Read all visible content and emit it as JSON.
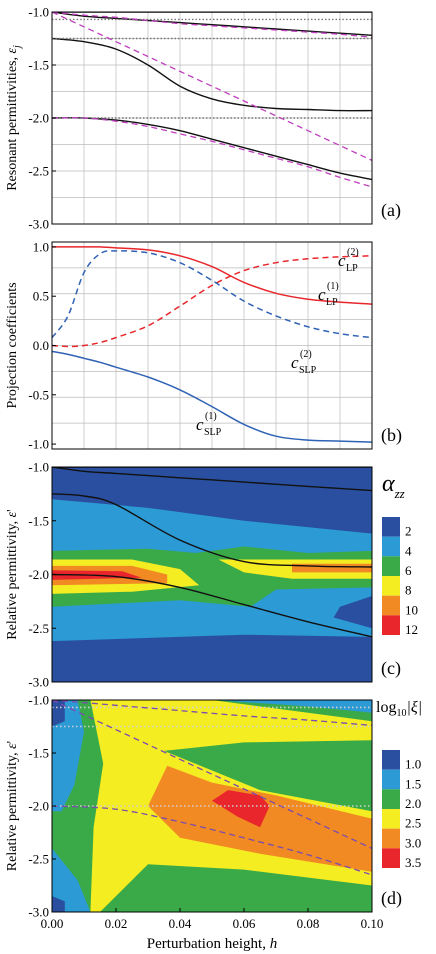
{
  "chart_data": [
    {
      "panel": "(a)",
      "type": "line",
      "ylabel": "Resonant permittivities, ε_j",
      "xlim": [
        0,
        0.1
      ],
      "ylim": [
        -3.0,
        -1.0
      ],
      "yticks": [
        "-1.0",
        "-1.5",
        "-2.0",
        "-2.5",
        "-3.0"
      ],
      "grid": true,
      "x": [
        0,
        0.01,
        0.02,
        0.03,
        0.04,
        0.05,
        0.06,
        0.07,
        0.08,
        0.09,
        0.1
      ],
      "series": [
        {
          "style": "solid-black",
          "values": [
            -1.0,
            -1.0,
            -1.0,
            -1.0,
            -1.0,
            -1.0,
            -1.0,
            -1.0,
            -1.0,
            -1.0,
            -1.0
          ]
        },
        {
          "style": "solid-black",
          "values": [
            -1.0,
            -1.04,
            -1.06,
            -1.08,
            -1.1,
            -1.12,
            -1.14,
            -1.16,
            -1.18,
            -1.2,
            -1.22
          ]
        },
        {
          "style": "solid-black",
          "values": [
            -1.25,
            -1.28,
            -1.35,
            -1.5,
            -1.7,
            -1.82,
            -1.88,
            -1.91,
            -1.92,
            -1.93,
            -1.93
          ]
        },
        {
          "style": "solid-black",
          "values": [
            -2.0,
            -2.0,
            -2.02,
            -2.06,
            -2.12,
            -2.2,
            -2.28,
            -2.36,
            -2.44,
            -2.52,
            -2.58
          ]
        },
        {
          "style": "dotted-grey",
          "values": [
            -1.07,
            -1.07,
            -1.07,
            -1.07,
            -1.07,
            -1.07,
            -1.07,
            -1.07,
            -1.07,
            -1.07,
            -1.07
          ]
        },
        {
          "style": "dotted-grey",
          "values": [
            -1.25,
            -1.25,
            -1.25,
            -1.25,
            -1.25,
            -1.25,
            -1.25,
            -1.25,
            -1.25,
            -1.25,
            -1.25
          ]
        },
        {
          "style": "dotted-grey",
          "values": [
            -2.0,
            -2.0,
            -2.0,
            -2.0,
            -2.0,
            -2.0,
            -2.0,
            -2.0,
            -2.0,
            -2.0,
            -2.0
          ]
        },
        {
          "style": "dashed-magenta",
          "values": [
            -1.0,
            -1.03,
            -1.05,
            -1.08,
            -1.11,
            -1.13,
            -1.15,
            -1.17,
            -1.19,
            -1.21,
            -1.24
          ]
        },
        {
          "style": "dashed-magenta",
          "values": [
            -1.0,
            -1.14,
            -1.28,
            -1.42,
            -1.56,
            -1.7,
            -1.84,
            -1.98,
            -2.12,
            -2.26,
            -2.4
          ]
        },
        {
          "style": "dashed-magenta",
          "values": [
            -2.0,
            -2.0,
            -2.03,
            -2.08,
            -2.15,
            -2.22,
            -2.3,
            -2.38,
            -2.46,
            -2.56,
            -2.65
          ]
        }
      ]
    },
    {
      "panel": "(b)",
      "type": "line",
      "ylabel": "Projection coefficients",
      "xlim": [
        0,
        0.1
      ],
      "ylim": [
        -1.05,
        1.05
      ],
      "yticks": [
        "1.0",
        "0.5",
        "0.0",
        "-0.5",
        "-1.0"
      ],
      "grid": true,
      "x": [
        0,
        0.005,
        0.01,
        0.015,
        0.02,
        0.03,
        0.04,
        0.05,
        0.06,
        0.07,
        0.08,
        0.09,
        0.1
      ],
      "series": [
        {
          "label_main": "c",
          "label_sup": "(1)",
          "label_sub": "LP",
          "color": "#e8262b",
          "dash": false,
          "values": [
            1.0,
            1.0,
            1.0,
            1.0,
            0.99,
            0.97,
            0.91,
            0.8,
            0.64,
            0.53,
            0.47,
            0.44,
            0.42
          ]
        },
        {
          "label_main": "c",
          "label_sup": "(2)",
          "label_sub": "LP",
          "color": "#e8262b",
          "dash": true,
          "values": [
            0.0,
            -0.01,
            0.0,
            0.03,
            0.08,
            0.2,
            0.4,
            0.61,
            0.76,
            0.84,
            0.88,
            0.9,
            0.91
          ]
        },
        {
          "label_main": "c",
          "label_sup": "(2)",
          "label_sub": "SLP",
          "color": "#2f62b4",
          "dash": true,
          "values": [
            0.08,
            0.3,
            0.74,
            0.93,
            0.96,
            0.94,
            0.84,
            0.66,
            0.45,
            0.3,
            0.19,
            0.12,
            0.08
          ]
        },
        {
          "label_main": "c",
          "label_sup": "(1)",
          "label_sub": "SLP",
          "color": "#2f62b4",
          "dash": false,
          "values": [
            -0.06,
            -0.09,
            -0.13,
            -0.17,
            -0.22,
            -0.32,
            -0.45,
            -0.62,
            -0.8,
            -0.92,
            -0.96,
            -0.97,
            -0.98
          ]
        }
      ]
    },
    {
      "panel": "(c)",
      "type": "heatmap",
      "ylabel": "Relative permittivity, ε'",
      "xlim": [
        0,
        0.1
      ],
      "ylim": [
        -3.0,
        -1.0
      ],
      "yticks": [
        "-1.0",
        "-1.5",
        "-2.0",
        "-2.5",
        "-3.0"
      ],
      "colorbar_title_main": "α",
      "colorbar_title_sub": "zz",
      "colorbar_levels": [
        "2",
        "4",
        "6",
        "8",
        "10",
        "12"
      ],
      "colorbar_colors": [
        "#2a4fa0",
        "#2c9ad4",
        "#3aaa48",
        "#f4ed22",
        "#f18a22",
        "#e8262b"
      ],
      "overlay_lines": [
        {
          "x": [
            0,
            0.01,
            0.02,
            0.04,
            0.06,
            0.08,
            0.1
          ],
          "y": [
            -1.0,
            -1.04,
            -1.06,
            -1.1,
            -1.14,
            -1.18,
            -1.22
          ]
        },
        {
          "x": [
            0,
            0.01,
            0.02,
            0.04,
            0.06,
            0.08,
            0.1
          ],
          "y": [
            -1.25,
            -1.27,
            -1.35,
            -1.68,
            -1.88,
            -1.92,
            -1.93
          ]
        },
        {
          "x": [
            0,
            0.02,
            0.04,
            0.06,
            0.08,
            0.1
          ],
          "y": [
            -2.0,
            -2.02,
            -2.12,
            -2.28,
            -2.44,
            -2.58
          ]
        },
        {
          "x": [
            0,
            0.1
          ],
          "y": [
            -1.0,
            -1.0
          ]
        }
      ]
    },
    {
      "panel": "(d)",
      "type": "heatmap",
      "ylabel": "Relative permittivity, ε'",
      "xlabel": "Perturbation height, h",
      "xlim": [
        0,
        0.1
      ],
      "ylim": [
        -3.0,
        -1.0
      ],
      "xticks": [
        "0.00",
        "0.02",
        "0.04",
        "0.06",
        "0.08",
        "0.10"
      ],
      "yticks": [
        "-1.0",
        "-1.5",
        "-2.0",
        "-2.5",
        "-3.0"
      ],
      "colorbar_title_main": "log",
      "colorbar_title_sub": "10",
      "colorbar_title_rest": "|ξ|",
      "colorbar_levels": [
        "1.0",
        "1.5",
        "2.0",
        "2.5",
        "3.0",
        "3.5"
      ],
      "colorbar_colors": [
        "#2a4fa0",
        "#2c9ad4",
        "#3aaa48",
        "#f4ed22",
        "#f18a22",
        "#e8262b"
      ],
      "dotted_lines_y": [
        -1.07,
        -1.25,
        -2.0
      ],
      "dashed_lines": [
        {
          "x": [
            0,
            0.02,
            0.04,
            0.06,
            0.08,
            0.1
          ],
          "y": [
            -1.0,
            -1.05,
            -1.1,
            -1.15,
            -1.19,
            -1.24
          ]
        },
        {
          "x": [
            0,
            0.02,
            0.04,
            0.06,
            0.08,
            0.1
          ],
          "y": [
            -1.0,
            -1.28,
            -1.56,
            -1.84,
            -2.12,
            -2.4
          ]
        },
        {
          "x": [
            0,
            0.02,
            0.04,
            0.06,
            0.08,
            0.1
          ],
          "y": [
            -2.0,
            -2.03,
            -2.15,
            -2.3,
            -2.46,
            -2.65
          ]
        }
      ]
    }
  ]
}
